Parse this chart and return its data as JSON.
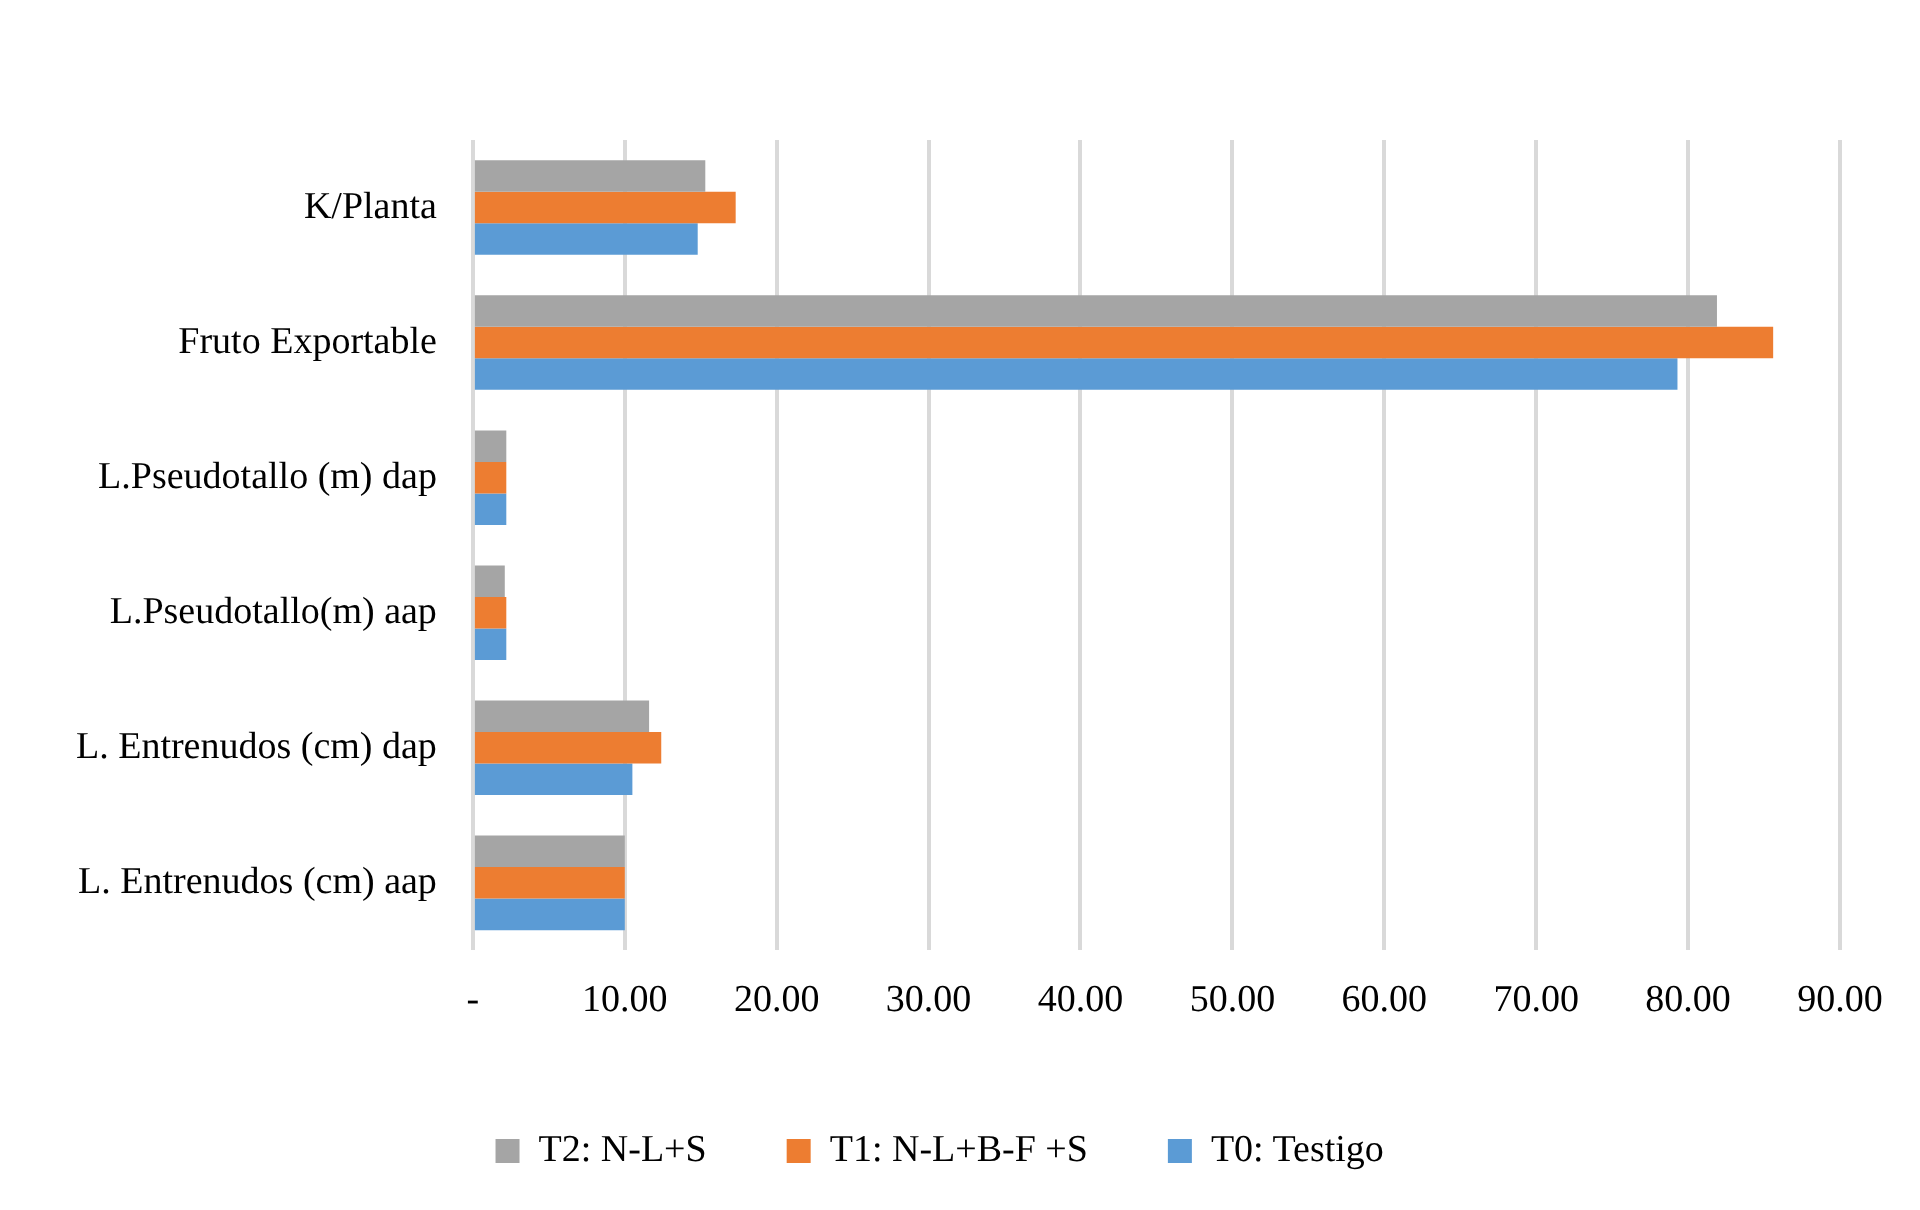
{
  "chart_data": {
    "type": "bar",
    "orientation": "horizontal",
    "categories": [
      "K/Planta",
      "Fruto Exportable",
      "L.Pseudotallo (m) dap",
      "L.Pseudotallo(m) aap",
      "L. Entrenudos (cm) dap",
      "L. Entrenudos (cm) aap"
    ],
    "series": [
      {
        "name": "T2: N-L+S",
        "color": "#a5a5a5",
        "values": [
          15.3,
          81.9,
          2.2,
          2.1,
          11.6,
          10.0
        ]
      },
      {
        "name": "T1: N-L+B-F +S",
        "color": "#ed7d31",
        "values": [
          17.3,
          85.6,
          2.2,
          2.2,
          12.4,
          10.0
        ]
      },
      {
        "name": "T0: Testigo",
        "color": "#5b9bd5",
        "values": [
          14.8,
          79.3,
          2.2,
          2.2,
          10.5,
          10.0
        ]
      }
    ],
    "xlim": [
      0,
      90
    ],
    "xticks": [
      {
        "value": 0,
        "label": "-"
      },
      {
        "value": 10,
        "label": "10.00"
      },
      {
        "value": 20,
        "label": "20.00"
      },
      {
        "value": 30,
        "label": "30.00"
      },
      {
        "value": 40,
        "label": "40.00"
      },
      {
        "value": 50,
        "label": "50.00"
      },
      {
        "value": 60,
        "label": "60.00"
      },
      {
        "value": 70,
        "label": "70.00"
      },
      {
        "value": 80,
        "label": "80.00"
      },
      {
        "value": 90,
        "label": "90.00"
      }
    ],
    "grid": "x",
    "legend": "bottom"
  }
}
